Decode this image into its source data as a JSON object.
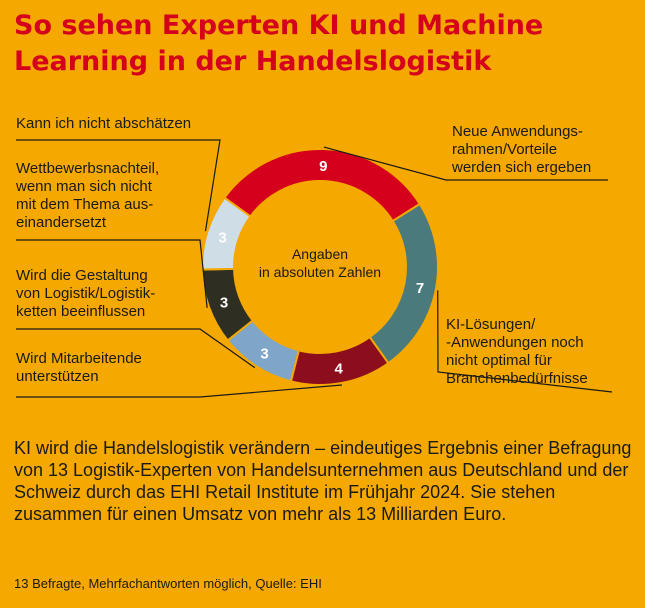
{
  "header": {
    "title": "So sehen Experten KI und Machine Learning in der Handelslogistik"
  },
  "chart_data": {
    "type": "pie",
    "variant": "donut",
    "center_label": [
      "Angaben",
      "in absoluten Zahlen"
    ],
    "slices": [
      {
        "label": "Neue Anwendungs-rahmen/Vorteile werden sich ergeben",
        "lines": [
          "Neue Anwendungs-",
          "rahmen/Vorteile",
          "werden sich ergeben"
        ],
        "value": 9,
        "color": "#D5001C"
      },
      {
        "label": "KI-Lösungen/-Anwendungen noch nicht optimal für Branchenbedürfnisse",
        "lines": [
          "KI-Lösungen/",
          "-Anwendungen noch",
          "nicht optimal für",
          "Branchenbedürfnisse"
        ],
        "value": 7,
        "color": "#4A7A7C"
      },
      {
        "label": "Wird Mitarbeitende unterstützen",
        "lines": [
          "Wird Mitarbeitende",
          "unterstützen"
        ],
        "value": 4,
        "color": "#8C0E1C"
      },
      {
        "label": "Wird die Gestaltung von Logistik/Logistikketten beeinflussen",
        "lines": [
          "Wird die Gestaltung",
          "von Logistik/Logistik-",
          "ketten beeinflussen"
        ],
        "value": 3,
        "color": "#7FA6C9"
      },
      {
        "label": "Wettbewerbsnachteil, wenn man sich nicht mit dem Thema auseinandersetzt",
        "lines": [
          "Wettbewerbsnachteil,",
          "wenn man sich nicht",
          "mit dem Thema aus-",
          "einandersetzt"
        ],
        "value": 3,
        "color": "#2E2E22"
      },
      {
        "label": "Kann ich nicht abschätzen",
        "lines": [
          "Kann ich nicht abschätzen"
        ],
        "value": 3,
        "color": "#CFDDE6"
      }
    ]
  },
  "description": "KI wird die Handelslogistik verändern – eindeutiges Ergebnis einer Befragung von 13 Logistik-Experten von Handelsunternehmen aus Deutschland und der Schweiz durch das EHI Retail Institute im Frühjahr 2024. Sie stehen zusammen für einen Umsatz von mehr als 13 Milliarden Euro.",
  "source": "13 Befragte, Mehrfachantworten möglich, Quelle: EHI",
  "colors": {
    "background": "#F5A800",
    "title": "#D5001C"
  }
}
